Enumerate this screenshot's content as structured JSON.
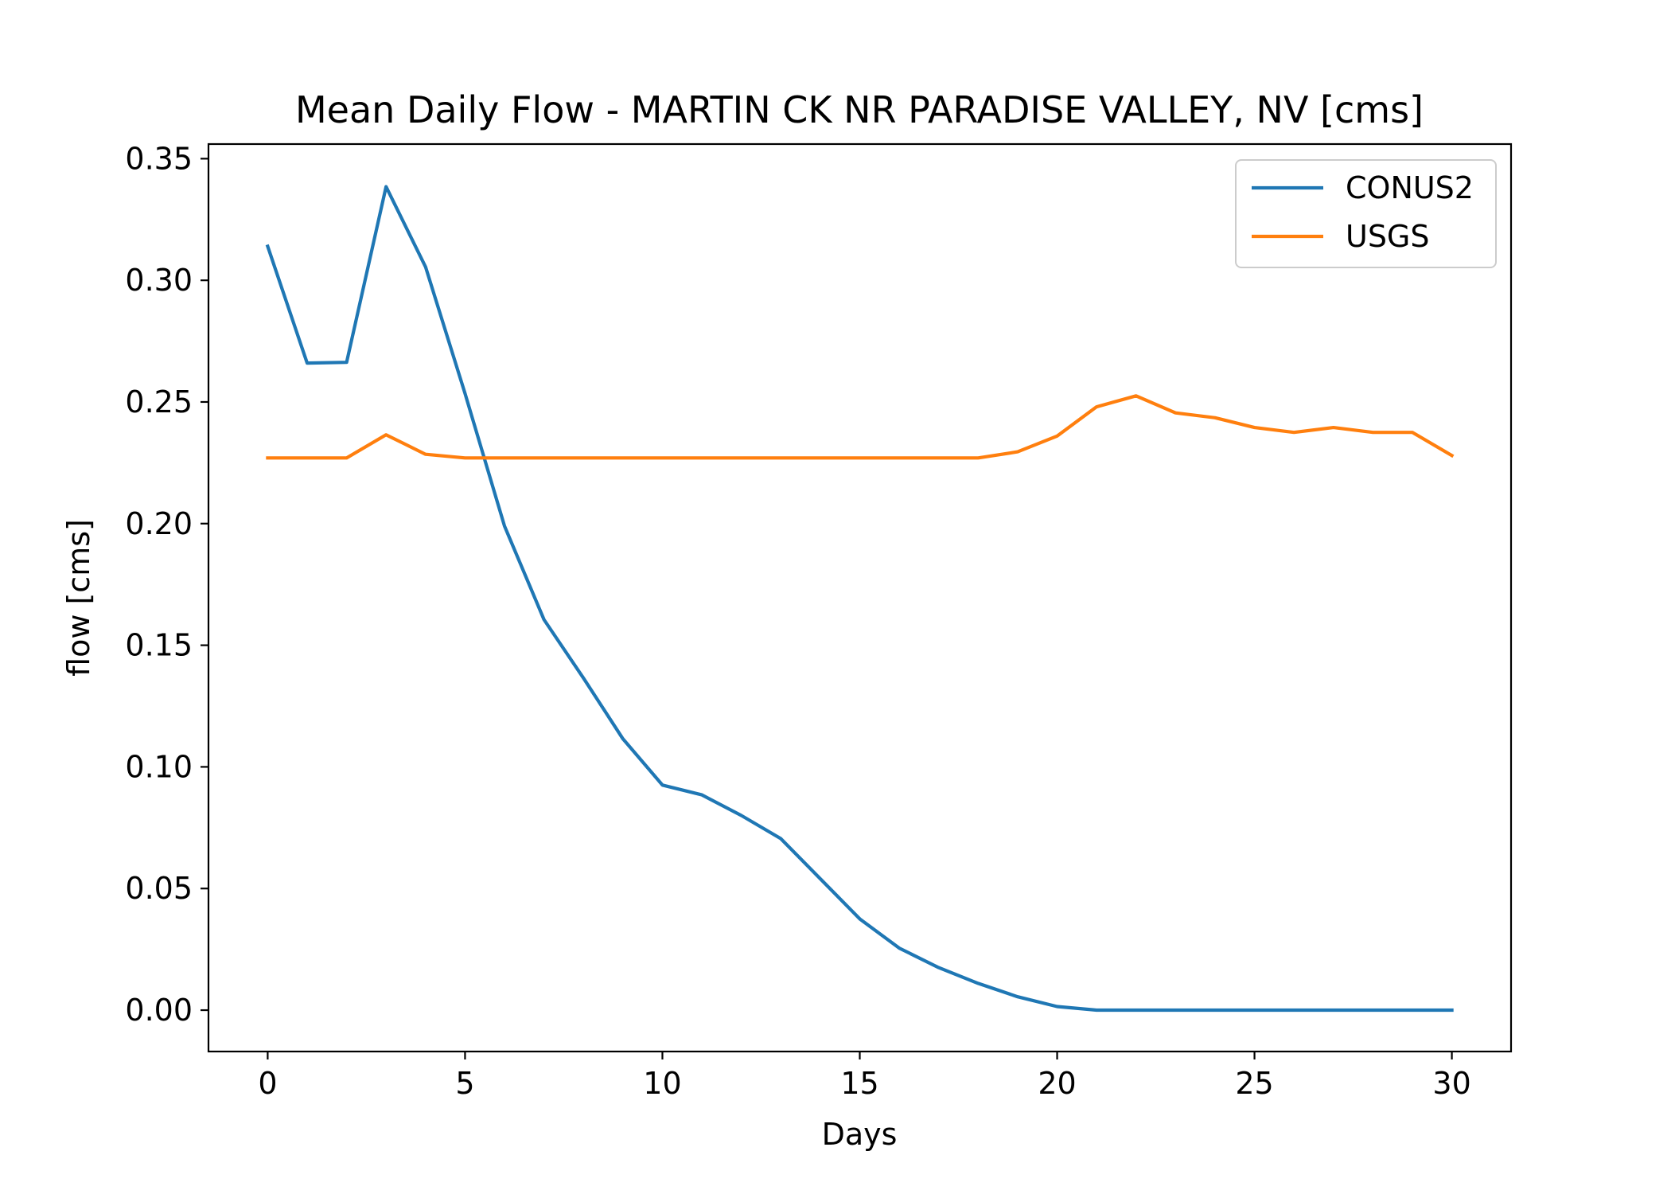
{
  "chart_data": {
    "type": "line",
    "title": "Mean Daily Flow - MARTIN CK NR PARADISE VALLEY, NV [cms]",
    "xlabel": "Days",
    "ylabel": "flow [cms]",
    "xlim": [
      -1.5,
      31.5
    ],
    "ylim": [
      -0.017,
      0.356
    ],
    "xticks": [
      0,
      5,
      10,
      15,
      20,
      25,
      30
    ],
    "xtick_labels": [
      "0",
      "5",
      "10",
      "15",
      "20",
      "25",
      "30"
    ],
    "yticks": [
      0.0,
      0.05,
      0.1,
      0.15,
      0.2,
      0.25,
      0.3,
      0.35
    ],
    "ytick_labels": [
      "0.00",
      "0.05",
      "0.10",
      "0.15",
      "0.20",
      "0.25",
      "0.30",
      "0.35"
    ],
    "grid": false,
    "legend_position": "top-right",
    "x": [
      0,
      1,
      2,
      3,
      4,
      5,
      6,
      7,
      8,
      9,
      10,
      11,
      12,
      13,
      14,
      15,
      16,
      17,
      18,
      19,
      20,
      21,
      22,
      23,
      24,
      25,
      26,
      27,
      28,
      29,
      30
    ],
    "series": [
      {
        "name": "CONUS2",
        "color": "#1f77b4",
        "values": [
          0.314,
          0.266,
          0.2663,
          0.3385,
          0.3055,
          0.2535,
          0.199,
          0.1605,
          0.1365,
          0.1115,
          0.0925,
          0.0885,
          0.08,
          0.0705,
          0.054,
          0.0375,
          0.0255,
          0.0175,
          0.011,
          0.0055,
          0.0015,
          0.0,
          0.0,
          0.0,
          0.0,
          0.0,
          0.0,
          0.0,
          0.0,
          0.0,
          0.0
        ]
      },
      {
        "name": "USGS",
        "color": "#ff7f0e",
        "values": [
          0.227,
          0.227,
          0.227,
          0.2365,
          0.2285,
          0.227,
          0.227,
          0.227,
          0.227,
          0.227,
          0.227,
          0.227,
          0.227,
          0.227,
          0.227,
          0.227,
          0.227,
          0.227,
          0.227,
          0.2295,
          0.236,
          0.248,
          0.2525,
          0.2455,
          0.2435,
          0.2395,
          0.2375,
          0.2395,
          0.2375,
          0.2375,
          0.228
        ]
      }
    ]
  }
}
